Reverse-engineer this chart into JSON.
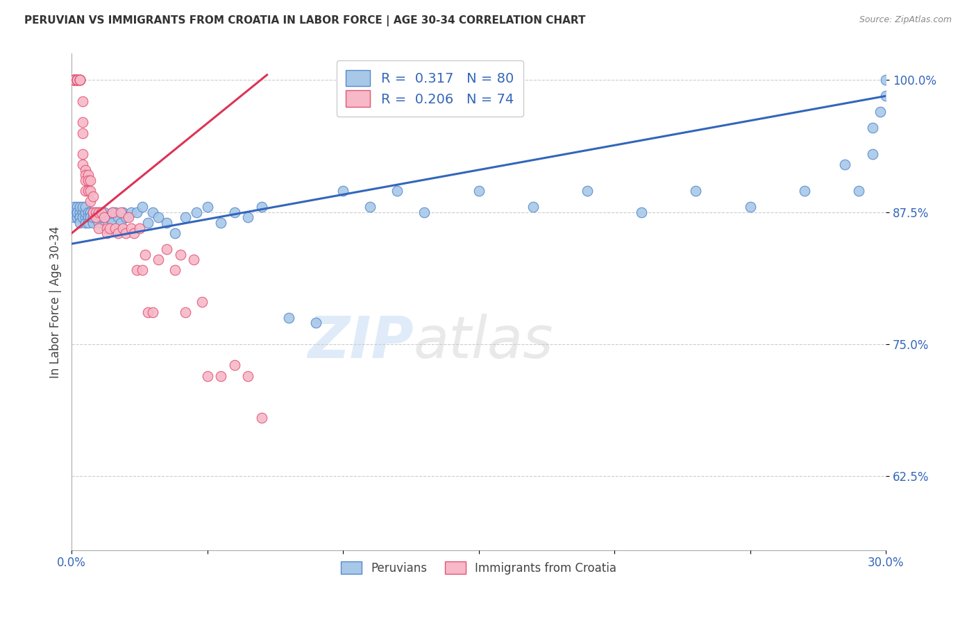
{
  "title": "PERUVIAN VS IMMIGRANTS FROM CROATIA IN LABOR FORCE | AGE 30-34 CORRELATION CHART",
  "source": "Source: ZipAtlas.com",
  "ylabel": "In Labor Force | Age 30-34",
  "xlim": [
    0.0,
    0.3
  ],
  "ylim": [
    0.555,
    1.025
  ],
  "xticks": [
    0.0,
    0.05,
    0.1,
    0.15,
    0.2,
    0.25,
    0.3
  ],
  "xticklabels": [
    "0.0%",
    "",
    "",
    "",
    "",
    "",
    "30.0%"
  ],
  "yticks": [
    0.625,
    0.75,
    0.875,
    1.0
  ],
  "yticklabels": [
    "62.5%",
    "75.0%",
    "87.5%",
    "100.0%"
  ],
  "blue_R": 0.317,
  "blue_N": 80,
  "pink_R": 0.206,
  "pink_N": 74,
  "blue_color": "#a8c8e8",
  "pink_color": "#f7b8c8",
  "blue_edge_color": "#5588cc",
  "pink_edge_color": "#e05575",
  "blue_line_color": "#3366bb",
  "pink_line_color": "#dd3355",
  "legend_label_blue": "Peruvians",
  "legend_label_pink": "Immigrants from Croatia",
  "watermark": "ZIPatlas",
  "blue_points_x": [
    0.001,
    0.001,
    0.001,
    0.002,
    0.002,
    0.002,
    0.002,
    0.003,
    0.003,
    0.003,
    0.003,
    0.003,
    0.004,
    0.004,
    0.004,
    0.005,
    0.005,
    0.005,
    0.005,
    0.006,
    0.006,
    0.006,
    0.007,
    0.007,
    0.008,
    0.008,
    0.008,
    0.009,
    0.009,
    0.01,
    0.01,
    0.01,
    0.011,
    0.011,
    0.012,
    0.012,
    0.013,
    0.014,
    0.015,
    0.015,
    0.016,
    0.017,
    0.018,
    0.019,
    0.02,
    0.022,
    0.024,
    0.026,
    0.028,
    0.03,
    0.032,
    0.035,
    0.038,
    0.042,
    0.046,
    0.05,
    0.055,
    0.06,
    0.065,
    0.07,
    0.08,
    0.09,
    0.1,
    0.11,
    0.12,
    0.13,
    0.15,
    0.17,
    0.19,
    0.21,
    0.23,
    0.25,
    0.27,
    0.285,
    0.29,
    0.295,
    0.295,
    0.298,
    0.3,
    0.3
  ],
  "blue_points_y": [
    0.875,
    0.88,
    0.87,
    0.875,
    0.87,
    0.88,
    0.875,
    0.87,
    0.875,
    0.88,
    0.87,
    0.865,
    0.875,
    0.87,
    0.88,
    0.87,
    0.875,
    0.865,
    0.88,
    0.875,
    0.87,
    0.865,
    0.875,
    0.87,
    0.865,
    0.875,
    0.87,
    0.875,
    0.87,
    0.875,
    0.87,
    0.865,
    0.875,
    0.87,
    0.87,
    0.875,
    0.87,
    0.87,
    0.875,
    0.865,
    0.875,
    0.87,
    0.865,
    0.875,
    0.87,
    0.875,
    0.875,
    0.88,
    0.865,
    0.875,
    0.87,
    0.865,
    0.855,
    0.87,
    0.875,
    0.88,
    0.865,
    0.875,
    0.87,
    0.88,
    0.775,
    0.77,
    0.895,
    0.88,
    0.895,
    0.875,
    0.895,
    0.88,
    0.895,
    0.875,
    0.895,
    0.88,
    0.895,
    0.92,
    0.895,
    0.93,
    0.955,
    0.97,
    0.985,
    1.0
  ],
  "pink_points_x": [
    0.0005,
    0.001,
    0.001,
    0.001,
    0.001,
    0.001,
    0.001,
    0.001,
    0.002,
    0.002,
    0.002,
    0.002,
    0.002,
    0.002,
    0.002,
    0.003,
    0.003,
    0.003,
    0.003,
    0.003,
    0.003,
    0.004,
    0.004,
    0.004,
    0.004,
    0.004,
    0.005,
    0.005,
    0.005,
    0.005,
    0.006,
    0.006,
    0.006,
    0.007,
    0.007,
    0.007,
    0.008,
    0.008,
    0.009,
    0.009,
    0.01,
    0.01,
    0.011,
    0.012,
    0.013,
    0.013,
    0.014,
    0.015,
    0.016,
    0.017,
    0.018,
    0.019,
    0.02,
    0.021,
    0.022,
    0.023,
    0.024,
    0.025,
    0.026,
    0.027,
    0.028,
    0.03,
    0.032,
    0.035,
    0.038,
    0.04,
    0.042,
    0.045,
    0.048,
    0.05,
    0.055,
    0.06,
    0.065,
    0.07
  ],
  "pink_points_y": [
    1.0,
    1.0,
    1.0,
    1.0,
    1.0,
    1.0,
    1.0,
    1.0,
    1.0,
    1.0,
    1.0,
    1.0,
    1.0,
    1.0,
    1.0,
    1.0,
    1.0,
    1.0,
    1.0,
    1.0,
    1.0,
    0.98,
    0.96,
    0.95,
    0.93,
    0.92,
    0.915,
    0.91,
    0.905,
    0.895,
    0.91,
    0.905,
    0.895,
    0.905,
    0.895,
    0.885,
    0.89,
    0.875,
    0.875,
    0.87,
    0.875,
    0.86,
    0.875,
    0.87,
    0.86,
    0.855,
    0.86,
    0.875,
    0.86,
    0.855,
    0.875,
    0.86,
    0.855,
    0.87,
    0.86,
    0.855,
    0.82,
    0.86,
    0.82,
    0.835,
    0.78,
    0.78,
    0.83,
    0.84,
    0.82,
    0.835,
    0.78,
    0.83,
    0.79,
    0.72,
    0.72,
    0.73,
    0.72,
    0.68
  ],
  "blue_line_x": [
    0.0,
    0.3
  ],
  "blue_line_y": [
    0.845,
    0.985
  ],
  "pink_line_x": [
    0.0,
    0.072
  ],
  "pink_line_y": [
    0.855,
    1.005
  ]
}
